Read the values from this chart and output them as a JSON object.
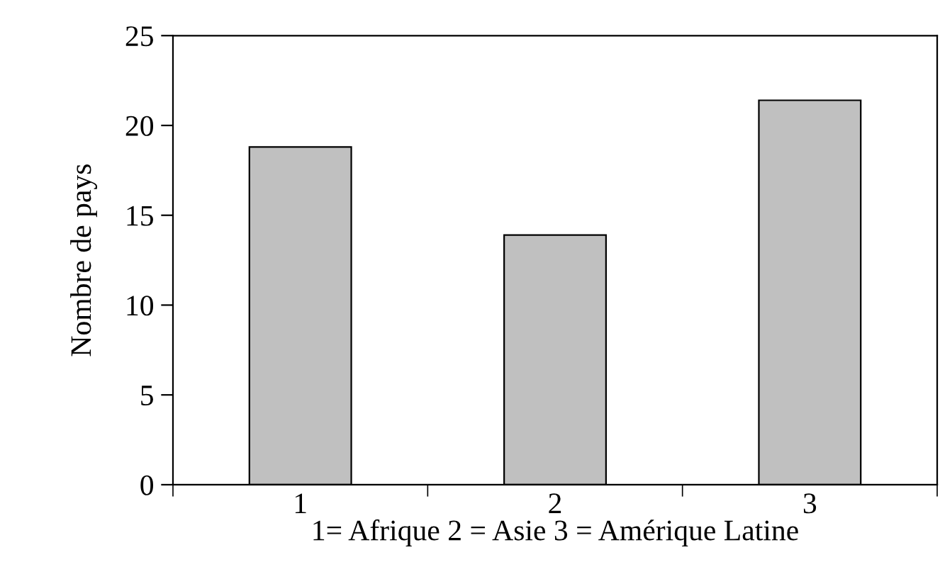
{
  "chart_data": {
    "type": "bar",
    "xlabel": "1= Afrique 2 = Asie 3 = Amérique Latine",
    "ylabel": "Nombre de pays",
    "categories": [
      "1",
      "2",
      "3"
    ],
    "values": [
      18.8,
      13.9,
      21.4
    ],
    "color": "#c0c0c0",
    "ylim": [
      0,
      25
    ],
    "yticks": [
      0,
      5,
      10,
      15,
      20,
      25
    ],
    "grid": false,
    "legend": false
  }
}
